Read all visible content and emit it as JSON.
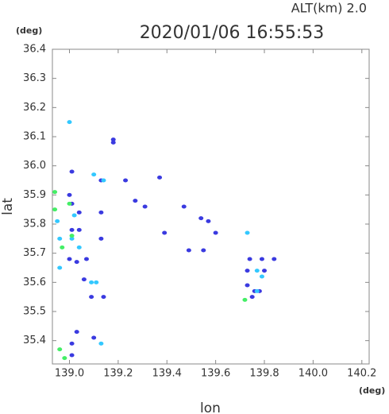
{
  "chart_data": {
    "type": "scatter",
    "title": "2020/01/06 16:55:53",
    "subtitle": "ALT(km) 2.0",
    "x_label": "lon",
    "y_label": "lat",
    "x_unit": "(deg)",
    "y_unit": "(deg)",
    "xlim": [
      138.93,
      140.23
    ],
    "ylim": [
      35.32,
      36.4
    ],
    "xticks": [
      {
        "value": 139.0,
        "label": "139.0"
      },
      139.2,
      139.4,
      139.6,
      139.8,
      {
        "value": 140.0,
        "label": "140.0"
      },
      140.2
    ],
    "yticks": [
      35.4,
      35.5,
      35.6,
      35.7,
      35.8,
      35.9,
      {
        "value": 36.0,
        "label": "36.0"
      },
      36.1,
      36.2,
      36.3,
      36.4
    ],
    "series": [
      {
        "color": "#3a3ae0",
        "x": [
          139.01,
          139.0,
          139.01,
          139.04,
          139.01,
          139.04,
          139.0,
          139.03,
          139.07,
          139.06,
          139.09,
          139.03,
          139.01,
          139.01,
          139.13,
          139.13,
          139.18,
          139.18,
          139.27,
          139.31,
          139.47,
          139.54,
          139.57,
          139.6,
          139.49,
          139.55,
          139.74,
          139.73,
          139.73,
          139.75,
          139.76,
          139.79,
          139.84,
          139.8,
          139.78,
          139.14,
          139.1,
          139.39,
          139.37,
          139.23,
          139.13
        ],
        "y": [
          35.98,
          35.9,
          35.87,
          35.84,
          35.78,
          35.78,
          35.68,
          35.67,
          35.68,
          35.61,
          35.55,
          35.43,
          35.39,
          35.35,
          35.84,
          35.75,
          36.09,
          36.08,
          35.88,
          35.86,
          35.86,
          35.82,
          35.81,
          35.77,
          35.71,
          35.71,
          35.68,
          35.64,
          35.59,
          35.55,
          35.57,
          35.68,
          35.68,
          35.64,
          35.57,
          35.55,
          35.41,
          35.77,
          35.96,
          35.95,
          35.95
        ]
      },
      {
        "color": "#33c8ff",
        "x": [
          139.0,
          139.02,
          139.01,
          139.04,
          139.1,
          139.14,
          139.73,
          139.77,
          139.79,
          139.77,
          139.11,
          139.09,
          138.96,
          138.96,
          138.95,
          139.13
        ],
        "y": [
          36.15,
          35.83,
          35.75,
          35.72,
          35.97,
          35.95,
          35.77,
          35.64,
          35.62,
          35.57,
          35.6,
          35.6,
          35.65,
          35.75,
          35.81,
          35.39
        ]
      },
      {
        "color": "#44ee66",
        "x": [
          138.94,
          138.94,
          139.01,
          139.0,
          138.96,
          138.98,
          139.72,
          138.97
        ],
        "y": [
          35.91,
          35.85,
          35.76,
          35.87,
          35.37,
          35.34,
          35.54,
          35.72
        ]
      }
    ]
  }
}
